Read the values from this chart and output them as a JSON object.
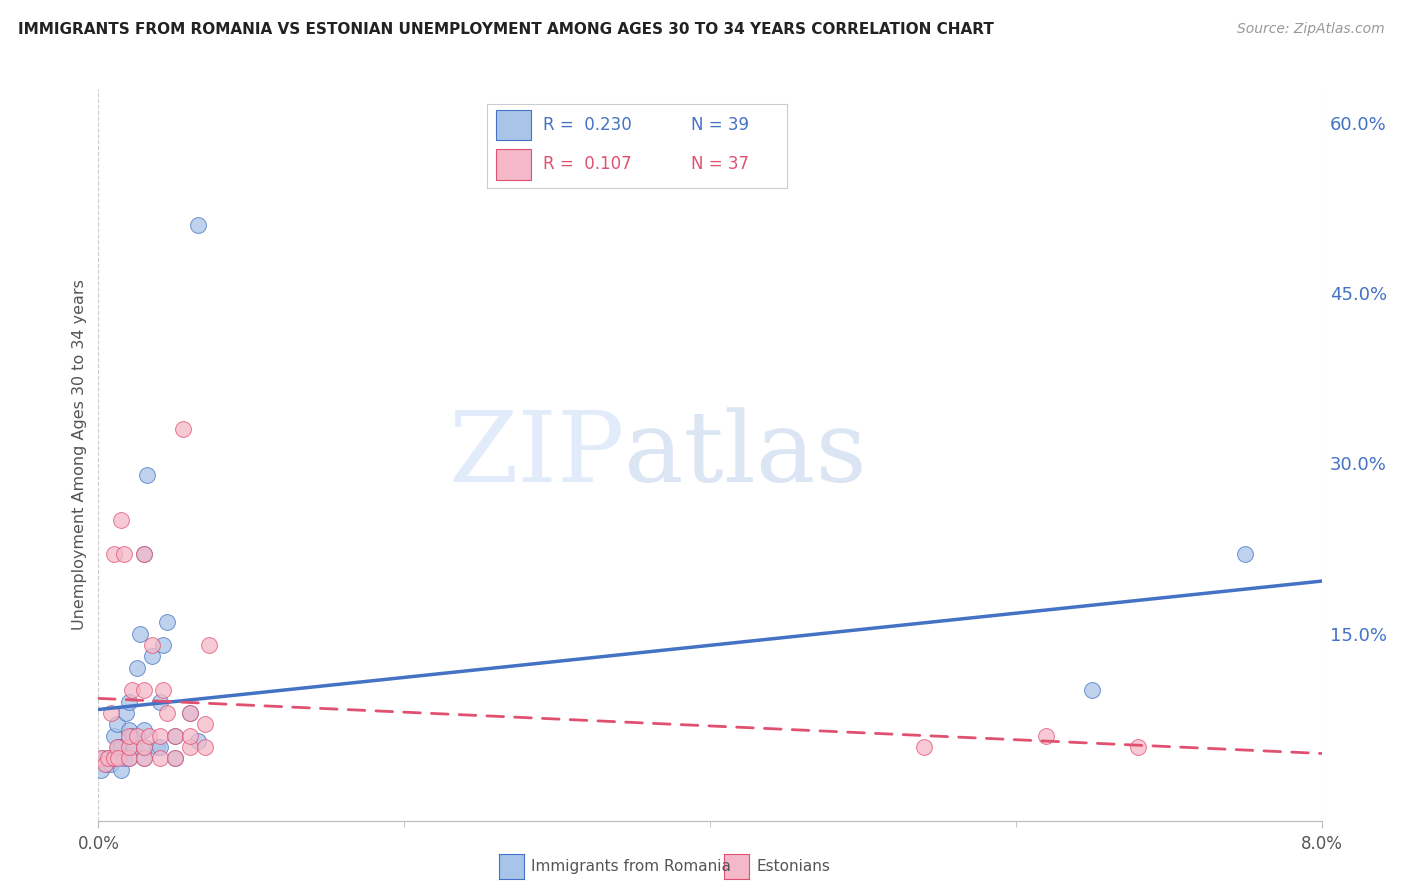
{
  "title": "IMMIGRANTS FROM ROMANIA VS ESTONIAN UNEMPLOYMENT AMONG AGES 30 TO 34 YEARS CORRELATION CHART",
  "source": "Source: ZipAtlas.com",
  "ylabel": "Unemployment Among Ages 30 to 34 years",
  "right_yticks": [
    0.0,
    0.15,
    0.3,
    0.45,
    0.6
  ],
  "right_yticklabels": [
    "",
    "15.0%",
    "30.0%",
    "45.0%",
    "60.0%"
  ],
  "xmin": 0.0,
  "xmax": 0.08,
  "ymin": -0.015,
  "ymax": 0.63,
  "color_blue": "#a8c4e8",
  "color_pink": "#f4b8c8",
  "color_blue_line": "#4472c4",
  "color_pink_line": "#e05070",
  "color_title": "#222222",
  "color_axis_label": "#555555",
  "color_right_tick": "#4472c4",
  "watermark_zip": "ZIP",
  "watermark_atlas": "atlas",
  "grid_color": "#cccccc",
  "background_color": "#ffffff",
  "legend_r1": "R =  0.230",
  "legend_n1": "N = 39",
  "legend_r2": "R =  0.107",
  "legend_n2": "N = 37",
  "blue_x": [
    0.0002,
    0.0003,
    0.0005,
    0.0007,
    0.0008,
    0.001,
    0.001,
    0.0012,
    0.0013,
    0.0015,
    0.0015,
    0.0017,
    0.0018,
    0.002,
    0.002,
    0.002,
    0.002,
    0.0022,
    0.0023,
    0.0025,
    0.0027,
    0.003,
    0.003,
    0.003,
    0.003,
    0.0032,
    0.0035,
    0.0038,
    0.004,
    0.004,
    0.0042,
    0.0045,
    0.005,
    0.005,
    0.006,
    0.0065,
    0.0065,
    0.065,
    0.075
  ],
  "blue_y": [
    0.03,
    0.04,
    0.035,
    0.04,
    0.035,
    0.04,
    0.06,
    0.07,
    0.05,
    0.03,
    0.05,
    0.04,
    0.08,
    0.04,
    0.05,
    0.065,
    0.09,
    0.06,
    0.05,
    0.12,
    0.15,
    0.04,
    0.05,
    0.065,
    0.22,
    0.29,
    0.13,
    0.05,
    0.05,
    0.09,
    0.14,
    0.16,
    0.04,
    0.06,
    0.08,
    0.51,
    0.055,
    0.1,
    0.22
  ],
  "pink_x": [
    0.0002,
    0.0004,
    0.0006,
    0.0008,
    0.001,
    0.001,
    0.0012,
    0.0013,
    0.0015,
    0.0017,
    0.002,
    0.002,
    0.002,
    0.0022,
    0.0025,
    0.003,
    0.003,
    0.003,
    0.003,
    0.0033,
    0.0035,
    0.004,
    0.004,
    0.0042,
    0.0045,
    0.005,
    0.005,
    0.0055,
    0.006,
    0.006,
    0.006,
    0.007,
    0.007,
    0.0072,
    0.054,
    0.062,
    0.068
  ],
  "pink_y": [
    0.04,
    0.035,
    0.04,
    0.08,
    0.04,
    0.22,
    0.05,
    0.04,
    0.25,
    0.22,
    0.04,
    0.05,
    0.06,
    0.1,
    0.06,
    0.04,
    0.05,
    0.1,
    0.22,
    0.06,
    0.14,
    0.04,
    0.06,
    0.1,
    0.08,
    0.04,
    0.06,
    0.33,
    0.05,
    0.06,
    0.08,
    0.05,
    0.07,
    0.14,
    0.05,
    0.06,
    0.05
  ]
}
